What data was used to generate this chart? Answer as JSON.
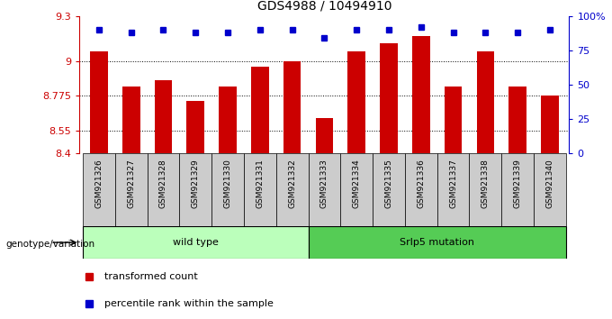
{
  "title": "GDS4988 / 10494910",
  "samples": [
    "GSM921326",
    "GSM921327",
    "GSM921328",
    "GSM921329",
    "GSM921330",
    "GSM921331",
    "GSM921332",
    "GSM921333",
    "GSM921334",
    "GSM921335",
    "GSM921336",
    "GSM921337",
    "GSM921338",
    "GSM921339",
    "GSM921340"
  ],
  "red_values": [
    9.07,
    8.84,
    8.88,
    8.74,
    8.84,
    8.97,
    9.0,
    8.63,
    9.07,
    9.12,
    9.17,
    8.84,
    9.07,
    8.84,
    8.78
  ],
  "blue_values": [
    90,
    88,
    90,
    88,
    88,
    90,
    90,
    84,
    90,
    90,
    92,
    88,
    88,
    88,
    90
  ],
  "ylim_left": [
    8.4,
    9.3
  ],
  "ylim_right": [
    0,
    100
  ],
  "yticks_left": [
    8.4,
    8.55,
    8.775,
    9.0,
    9.3
  ],
  "ytick_labels_left": [
    "8.4",
    "8.55",
    "8.775",
    "9",
    "9.3"
  ],
  "yticks_right": [
    0,
    25,
    50,
    75,
    100
  ],
  "ytick_labels_right": [
    "0",
    "25",
    "50",
    "75",
    "100%"
  ],
  "grid_lines": [
    9.0,
    8.775,
    8.55
  ],
  "bar_color": "#cc0000",
  "dot_color": "#0000cc",
  "wild_type_range": [
    0,
    6
  ],
  "mutation_range": [
    7,
    14
  ],
  "wild_type_label": "wild type",
  "mutation_label": "Srlp5 mutation",
  "group_label": "genotype/variation",
  "legend_red": "transformed count",
  "legend_blue": "percentile rank within the sample",
  "tick_color_left": "#cc0000",
  "tick_color_right": "#0000cc",
  "title_fontsize": 10,
  "wild_type_color": "#bbffbb",
  "mutation_color": "#55cc55"
}
